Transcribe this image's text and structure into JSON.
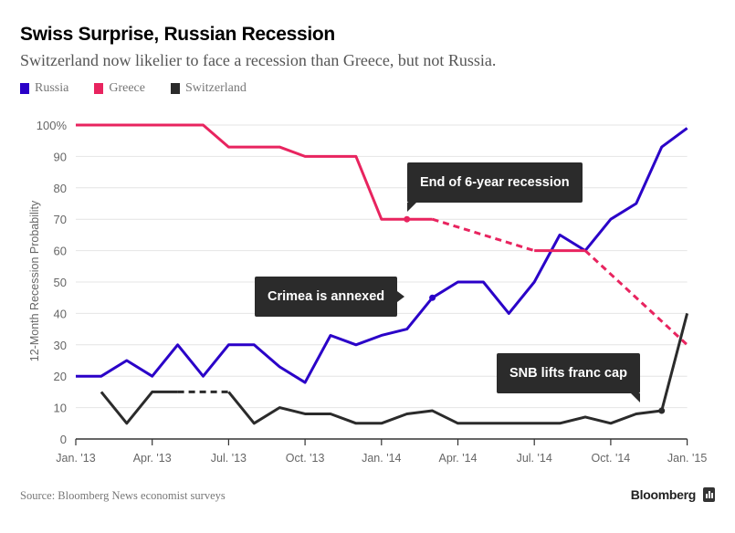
{
  "header": {
    "title": "Swiss Surprise, Russian Recession",
    "subtitle": "Switzerland now likelier to face a recession than Greece, but not Russia."
  },
  "legend": [
    {
      "label": "Russia",
      "color": "#2a00c8"
    },
    {
      "label": "Greece",
      "color": "#e8245f"
    },
    {
      "label": "Switzerland",
      "color": "#2b2b2b"
    }
  ],
  "footer": {
    "source": "Source: Bloomberg News economist surveys",
    "brand": "Bloomberg"
  },
  "annotations": [
    {
      "label": "End of 6-year recession",
      "series": "Greece",
      "month_index": 13,
      "value": 70
    },
    {
      "label": "Crimea is annexed",
      "series": "Russia",
      "month_index": 14,
      "value": 45
    },
    {
      "label": "SNB lifts franc cap",
      "series": "Switzerland",
      "month_index": 23,
      "value": 9
    }
  ],
  "chart_data": {
    "type": "line",
    "title": "Swiss Surprise, Russian Recession",
    "xlabel": "",
    "ylabel": "12-Month Recession Probability",
    "ylim": [
      0,
      100
    ],
    "yticks": [
      "0",
      "10",
      "20",
      "30",
      "40",
      "50",
      "60",
      "70",
      "80",
      "90",
      "100%"
    ],
    "xticks": [
      {
        "label": "Jan. '13",
        "month_index": 0
      },
      {
        "label": "Apr. '13",
        "month_index": 3
      },
      {
        "label": "Jul. '13",
        "month_index": 6
      },
      {
        "label": "Oct. '13",
        "month_index": 9
      },
      {
        "label": "Jan. '14",
        "month_index": 12
      },
      {
        "label": "Apr. '14",
        "month_index": 15
      },
      {
        "label": "Jul. '14",
        "month_index": 18
      },
      {
        "label": "Oct. '14",
        "month_index": 21
      },
      {
        "label": "Jan. '15",
        "month_index": 24
      }
    ],
    "x": [
      "Jan 13",
      "Feb 13",
      "Mar 13",
      "Apr 13",
      "May 13",
      "Jun 13",
      "Jul 13",
      "Aug 13",
      "Sep 13",
      "Oct 13",
      "Nov 13",
      "Dec 13",
      "Jan 14",
      "Feb 14",
      "Mar 14",
      "Apr 14",
      "May 14",
      "Jun 14",
      "Jul 14",
      "Aug 14",
      "Sep 14",
      "Oct 14",
      "Nov 14",
      "Dec 14",
      "Jan 15"
    ],
    "grid": true,
    "legend_position": "top-left",
    "series": [
      {
        "name": "Russia",
        "color": "#2a00c8",
        "values": [
          20,
          20,
          25,
          20,
          30,
          20,
          30,
          30,
          23,
          18,
          33,
          30,
          33,
          35,
          45,
          50,
          50,
          40,
          50,
          65,
          60,
          70,
          75,
          93,
          99
        ],
        "dashed_segments": []
      },
      {
        "name": "Greece",
        "color": "#e8245f",
        "values": [
          100,
          100,
          100,
          100,
          100,
          100,
          93,
          93,
          93,
          90,
          90,
          90,
          70,
          70,
          70,
          null,
          null,
          null,
          60,
          60,
          60,
          null,
          null,
          null,
          30
        ],
        "dashed_segments": [
          [
            14,
            18
          ],
          [
            20,
            24
          ]
        ]
      },
      {
        "name": "Switzerland",
        "color": "#2b2b2b",
        "values": [
          null,
          15,
          5,
          15,
          15,
          null,
          15,
          5,
          10,
          8,
          8,
          5,
          5,
          8,
          9,
          5,
          5,
          5,
          5,
          5,
          7,
          5,
          8,
          9,
          40
        ],
        "dashed_segments": [
          [
            4,
            6
          ]
        ]
      }
    ]
  }
}
